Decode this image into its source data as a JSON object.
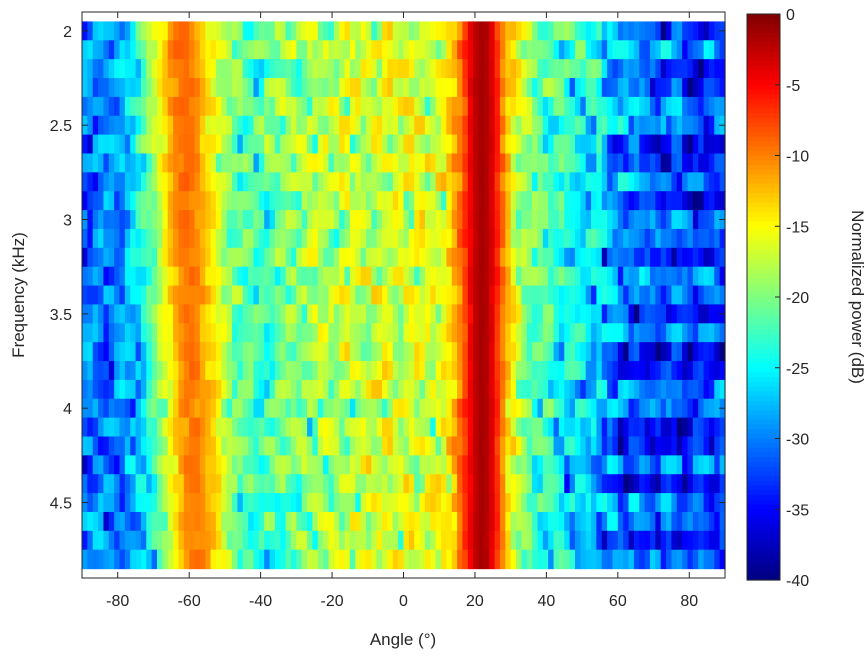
{
  "chart_data": {
    "type": "heatmap",
    "title": "",
    "xlabel": "Angle (°)",
    "ylabel": "Frequency (kHz)",
    "colorbar_label": "Normalized power (dB)",
    "colormap": "jet",
    "xlim": [
      -90,
      90
    ],
    "ylim": [
      1.9,
      4.9
    ],
    "y_direction": "reversed",
    "zlim": [
      -40,
      0
    ],
    "x_ticks": [
      -80,
      -60,
      -40,
      -20,
      0,
      20,
      40,
      60,
      80
    ],
    "y_ticks": [
      2,
      2.5,
      3,
      3.5,
      4,
      4.5
    ],
    "colorbar_ticks": [
      0,
      -5,
      -10,
      -15,
      -20,
      -25,
      -30,
      -35,
      -40
    ],
    "frequencies": [
      2.0,
      2.1,
      2.2,
      2.3,
      2.4,
      2.5,
      2.6,
      2.7,
      2.8,
      2.9,
      3.0,
      3.1,
      3.2,
      3.3,
      3.4,
      3.5,
      3.6,
      3.7,
      3.8,
      3.9,
      4.0,
      4.1,
      4.2,
      4.3,
      4.4,
      4.5,
      4.6,
      4.7,
      4.8
    ],
    "main_lobe_angle": 22,
    "side_lobe_center_start": -62,
    "side_lobe_center_end": -58
  },
  "colors": {
    "axes_frame": "#262626",
    "background": "#ffffff"
  }
}
